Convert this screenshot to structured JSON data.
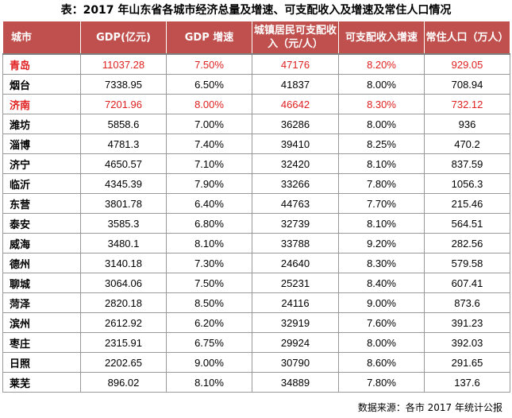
{
  "title": "表：2017 年山东省各城市经济总量及增速、可支配收入及增速及常住人口情况",
  "headers": [
    "城市",
    "GDP(亿元)",
    "GDP 增速",
    "城镇居民可支配收入（元/人）",
    "可支配收入增速",
    "常住人口（万人）"
  ],
  "rows": [
    {
      "city": "青岛",
      "gdp": "11037.28",
      "gdp_growth": "7.50%",
      "income": "47176",
      "income_growth": "8.20%",
      "population": "929.05",
      "highlight": true
    },
    {
      "city": "烟台",
      "gdp": "7338.95",
      "gdp_growth": "6.50%",
      "income": "41837",
      "income_growth": "8.00%",
      "population": "708.94",
      "highlight": false
    },
    {
      "city": "济南",
      "gdp": "7201.96",
      "gdp_growth": "8.00%",
      "income": "46642",
      "income_growth": "8.30%",
      "population": "732.12",
      "highlight": true
    },
    {
      "city": "潍坊",
      "gdp": "5858.6",
      "gdp_growth": "7.00%",
      "income": "36286",
      "income_growth": "8.00%",
      "population": "936",
      "highlight": false
    },
    {
      "city": "淄博",
      "gdp": "4781.3",
      "gdp_growth": "7.40%",
      "income": "39410",
      "income_growth": "8.25%",
      "population": "470.2",
      "highlight": false
    },
    {
      "city": "济宁",
      "gdp": "4650.57",
      "gdp_growth": "7.10%",
      "income": "32420",
      "income_growth": "8.10%",
      "population": "837.59",
      "highlight": false
    },
    {
      "city": "临沂",
      "gdp": "4345.39",
      "gdp_growth": "7.90%",
      "income": "33266",
      "income_growth": "7.80%",
      "population": "1056.3",
      "highlight": false
    },
    {
      "city": "东营",
      "gdp": "3801.78",
      "gdp_growth": "6.40%",
      "income": "44763",
      "income_growth": "7.70%",
      "population": "215.46",
      "highlight": false
    },
    {
      "city": "泰安",
      "gdp": "3585.3",
      "gdp_growth": "6.80%",
      "income": "32739",
      "income_growth": "8.10%",
      "population": "564.51",
      "highlight": false
    },
    {
      "city": "威海",
      "gdp": "3480.1",
      "gdp_growth": "8.10%",
      "income": "33788",
      "income_growth": "9.20%",
      "population": "282.56",
      "highlight": false
    },
    {
      "city": "德州",
      "gdp": "3140.18",
      "gdp_growth": "7.30%",
      "income": "24640",
      "income_growth": "8.30%",
      "population": "579.58",
      "highlight": false
    },
    {
      "city": "聊城",
      "gdp": "3064.06",
      "gdp_growth": "7.50%",
      "income": "25231",
      "income_growth": "8.40%",
      "population": "607.41",
      "highlight": false
    },
    {
      "city": "菏泽",
      "gdp": "2820.18",
      "gdp_growth": "8.50%",
      "income": "24116",
      "income_growth": "9.00%",
      "population": "873.6",
      "highlight": false
    },
    {
      "city": "滨州",
      "gdp": "2612.92",
      "gdp_growth": "6.20%",
      "income": "32919",
      "income_growth": "7.60%",
      "population": "391.23",
      "highlight": false
    },
    {
      "city": "枣庄",
      "gdp": "2315.91",
      "gdp_growth": "6.75%",
      "income": "29924",
      "income_growth": "8.00%",
      "population": "392.03",
      "highlight": false
    },
    {
      "city": "日照",
      "gdp": "2202.65",
      "gdp_growth": "9.00%",
      "income": "30790",
      "income_growth": "8.60%",
      "population": "291.65",
      "highlight": false
    },
    {
      "city": "莱芜",
      "gdp": "896.02",
      "gdp_growth": "8.10%",
      "income": "34889",
      "income_growth": "7.80%",
      "population": "137.6",
      "highlight": false
    }
  ],
  "source": "数据来源：各市 2017 年统计公报",
  "colors": {
    "header_bg": "#c0504d",
    "header_text": "#ffffff",
    "highlight_text": "#e02020",
    "border": "#999999"
  }
}
